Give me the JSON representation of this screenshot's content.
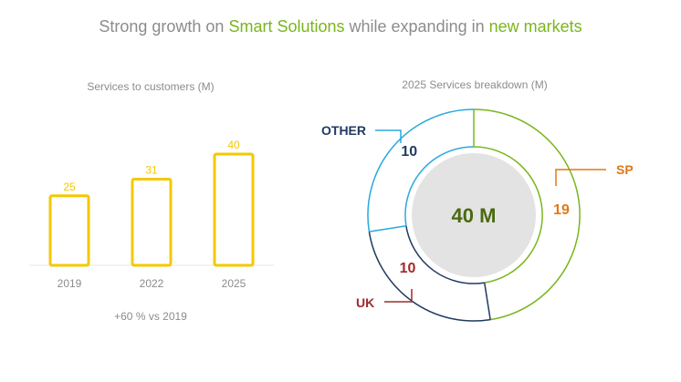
{
  "headline": {
    "part1": "Strong growth on ",
    "highlight1": "Smart Solutions",
    "part2": " while expanding in ",
    "highlight2": "new markets"
  },
  "colors": {
    "accent_green": "#7ab51d",
    "bar_yellow": "#f5c800",
    "navy": "#1f3a5f",
    "orange": "#e07818",
    "dark_red": "#a02a2a",
    "sky_blue": "#29a8e0",
    "gray_text": "#8c8c8c",
    "center_fill": "#e3e3e3",
    "center_text": "#4a6a10"
  },
  "chart_data": [
    {
      "type": "bar",
      "title": "Services to customers (M)",
      "categories": [
        "2019",
        "2022",
        "2025"
      ],
      "values": [
        25,
        31,
        40
      ],
      "ylim": [
        0,
        40
      ],
      "note": "+60 % vs 2019"
    },
    {
      "type": "pie",
      "title": "2025 Services breakdown (M)",
      "center_label": "40 M",
      "total": 40,
      "slices": [
        {
          "label": "SP",
          "value": 19,
          "color": "#7ab51d",
          "label_color": "#e07818"
        },
        {
          "label": "UK",
          "value": 10,
          "color": "#1f3a5f",
          "label_color": "#a02a2a"
        },
        {
          "label": "OTHER",
          "value": 10,
          "color": "#29a8e0",
          "label_color": "#1f3a5f"
        }
      ]
    }
  ]
}
